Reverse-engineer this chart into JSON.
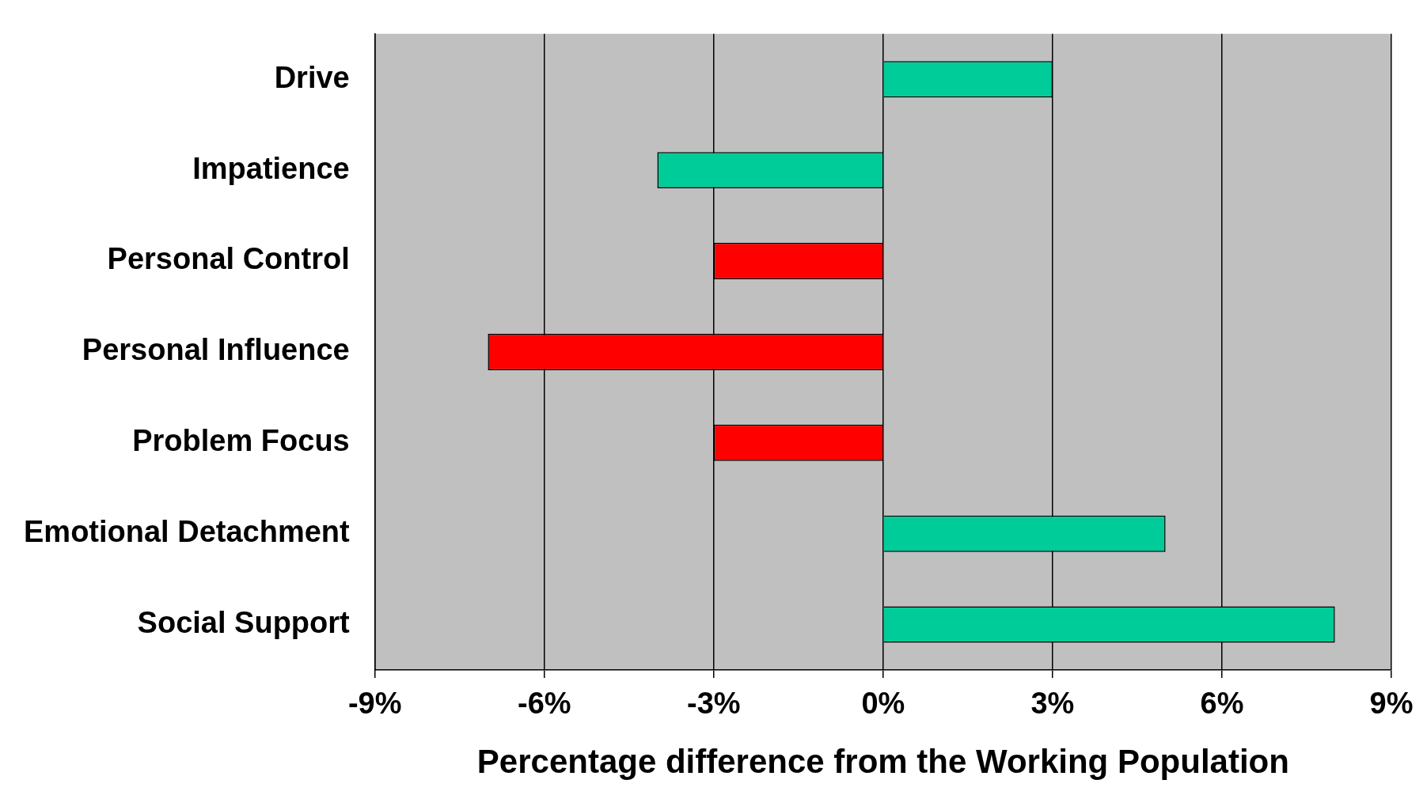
{
  "chart_data": {
    "type": "bar",
    "orientation": "horizontal",
    "xlabel": "Percentage difference from the Working Population",
    "categories": [
      "Drive",
      "Impatience",
      "Personal Control",
      "Personal Influence",
      "Problem Focus",
      "Emotional Detachment",
      "Social Support"
    ],
    "values": [
      3,
      -4,
      -3,
      -7,
      -3,
      5,
      8
    ],
    "colors": [
      "#00cc99",
      "#00cc99",
      "#ff0000",
      "#ff0000",
      "#ff0000",
      "#00cc99",
      "#00cc99"
    ],
    "xlim": [
      -9,
      9
    ],
    "xticks": [
      {
        "value": -9,
        "label": "-9%"
      },
      {
        "value": -6,
        "label": "-6%"
      },
      {
        "value": -3,
        "label": "-3%"
      },
      {
        "value": 0,
        "label": "0%"
      },
      {
        "value": 3,
        "label": "3%"
      },
      {
        "value": 6,
        "label": "6%"
      },
      {
        "value": 9,
        "label": "9%"
      }
    ],
    "grid": "x",
    "legend": false
  }
}
